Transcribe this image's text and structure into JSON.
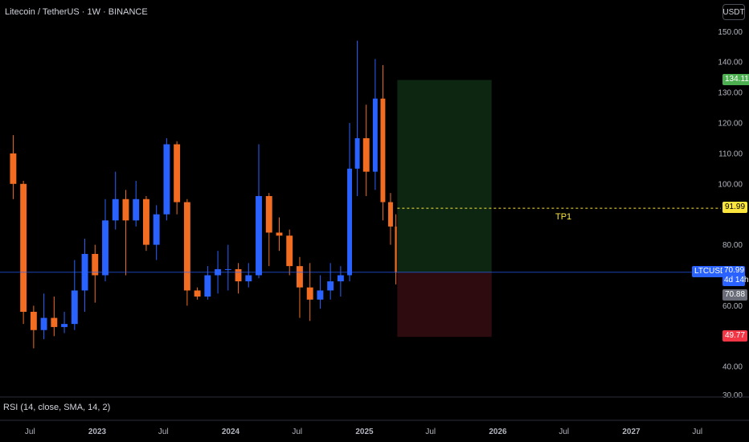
{
  "header": {
    "title": "Litecoin / TetherUS · 1W · BINANCE",
    "currency": "USDT"
  },
  "indicator": {
    "rsi_label": "RSI (14, close, SMA, 14, 2)",
    "rsi_axis_tick": "30.00"
  },
  "badges": {
    "target": "134.11",
    "tp_level": "91.99",
    "symbol": "LTCUSDT",
    "last_price": "70.99",
    "countdown": "4d 14h",
    "close_price": "70.88",
    "stop": "49.77"
  },
  "annotations": {
    "tp1": "TP1"
  },
  "colors": {
    "background": "#000000",
    "up": "#2962ff",
    "down": "#f26d21",
    "profit_zone": "#0d2611",
    "loss_zone": "#2e0b0f",
    "tp_line": "#fce53c",
    "price_line": "#2962ff"
  },
  "chart_data": {
    "type": "candlestick",
    "symbol": "LTCUSDT",
    "timeframe": "1W",
    "y_ticks": [
      40,
      50,
      60,
      70,
      80,
      90,
      100,
      110,
      120,
      130,
      140,
      150
    ],
    "ylim": [
      35,
      153
    ],
    "x_tick_labels": [
      "Jul",
      "2023",
      "Jul",
      "2024",
      "Jul",
      "2025",
      "Jul",
      "2026",
      "Jul",
      "2027",
      "Jul"
    ],
    "series": [
      {
        "date": "2022-05-02",
        "o": 110,
        "h": 116,
        "l": 95,
        "c": 100
      },
      {
        "date": "2022-05-30",
        "o": 100,
        "h": 101,
        "l": 54,
        "c": 58
      },
      {
        "date": "2022-06-27",
        "o": 58,
        "h": 60,
        "l": 46,
        "c": 52
      },
      {
        "date": "2022-07-25",
        "o": 52,
        "h": 64,
        "l": 49,
        "c": 56
      },
      {
        "date": "2022-08-22",
        "o": 56,
        "h": 63,
        "l": 50,
        "c": 53
      },
      {
        "date": "2022-09-19",
        "o": 53,
        "h": 58,
        "l": 51,
        "c": 54
      },
      {
        "date": "2022-10-17",
        "o": 54,
        "h": 75,
        "l": 52,
        "c": 65
      },
      {
        "date": "2022-11-14",
        "o": 65,
        "h": 82,
        "l": 58,
        "c": 77
      },
      {
        "date": "2022-12-12",
        "o": 77,
        "h": 80,
        "l": 61,
        "c": 70
      },
      {
        "date": "2023-01-09",
        "o": 70,
        "h": 95,
        "l": 68,
        "c": 88
      },
      {
        "date": "2023-02-06",
        "o": 88,
        "h": 104,
        "l": 85,
        "c": 95
      },
      {
        "date": "2023-03-06",
        "o": 95,
        "h": 98,
        "l": 70,
        "c": 88
      },
      {
        "date": "2023-04-03",
        "o": 88,
        "h": 101,
        "l": 86,
        "c": 95
      },
      {
        "date": "2023-05-01",
        "o": 95,
        "h": 96,
        "l": 78,
        "c": 80
      },
      {
        "date": "2023-05-29",
        "o": 80,
        "h": 93,
        "l": 75,
        "c": 90
      },
      {
        "date": "2023-06-26",
        "o": 90,
        "h": 115,
        "l": 88,
        "c": 113
      },
      {
        "date": "2023-07-24",
        "o": 113,
        "h": 114,
        "l": 90,
        "c": 94
      },
      {
        "date": "2023-08-21",
        "o": 94,
        "h": 95,
        "l": 60,
        "c": 65
      },
      {
        "date": "2023-09-18",
        "o": 65,
        "h": 66,
        "l": 62,
        "c": 63
      },
      {
        "date": "2023-10-16",
        "o": 63,
        "h": 73,
        "l": 62,
        "c": 70
      },
      {
        "date": "2023-11-13",
        "o": 70,
        "h": 78,
        "l": 64,
        "c": 72
      },
      {
        "date": "2023-12-11",
        "o": 72,
        "h": 80,
        "l": 65,
        "c": 72
      },
      {
        "date": "2024-01-08",
        "o": 72,
        "h": 74,
        "l": 64,
        "c": 68
      },
      {
        "date": "2024-02-05",
        "o": 68,
        "h": 74,
        "l": 66,
        "c": 70
      },
      {
        "date": "2024-03-04",
        "o": 70,
        "h": 113,
        "l": 69,
        "c": 96
      },
      {
        "date": "2024-04-01",
        "o": 96,
        "h": 97,
        "l": 73,
        "c": 84
      },
      {
        "date": "2024-04-29",
        "o": 84,
        "h": 89,
        "l": 78,
        "c": 83
      },
      {
        "date": "2024-05-27",
        "o": 83,
        "h": 85,
        "l": 70,
        "c": 73
      },
      {
        "date": "2024-06-24",
        "o": 73,
        "h": 76,
        "l": 56,
        "c": 66
      },
      {
        "date": "2024-07-22",
        "o": 66,
        "h": 74,
        "l": 55,
        "c": 62
      },
      {
        "date": "2024-08-19",
        "o": 62,
        "h": 70,
        "l": 59,
        "c": 65
      },
      {
        "date": "2024-09-16",
        "o": 65,
        "h": 74,
        "l": 62,
        "c": 68
      },
      {
        "date": "2024-10-14",
        "o": 68,
        "h": 73,
        "l": 63,
        "c": 70
      },
      {
        "date": "2024-11-11",
        "o": 70,
        "h": 120,
        "l": 68,
        "c": 105
      },
      {
        "date": "2024-12-02",
        "o": 105,
        "h": 147,
        "l": 96,
        "c": 115
      },
      {
        "date": "2024-12-23",
        "o": 115,
        "h": 126,
        "l": 96,
        "c": 104
      },
      {
        "date": "2025-01-20",
        "o": 104,
        "h": 141,
        "l": 98,
        "c": 128
      },
      {
        "date": "2025-02-10",
        "o": 128,
        "h": 139,
        "l": 88,
        "c": 94
      },
      {
        "date": "2025-03-03",
        "o": 94,
        "h": 97,
        "l": 80,
        "c": 86
      },
      {
        "date": "2025-03-24",
        "o": 86,
        "h": 90,
        "l": 67,
        "c": 70.88
      }
    ],
    "position": {
      "type": "long",
      "entry": 70.88,
      "target": 134.11,
      "stop": 49.77,
      "tp1": 91.99,
      "start_date": "2025-04-01",
      "end_date": "2025-12-15"
    },
    "last_price": 70.99,
    "rsi": {
      "length": 14,
      "source": "close",
      "ma_type": "SMA",
      "ma_length": 14,
      "bb_mult": 2
    }
  }
}
